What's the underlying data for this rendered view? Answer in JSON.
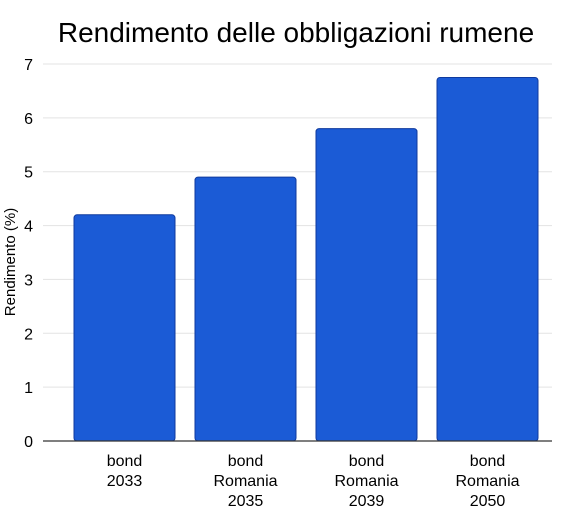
{
  "chart_data": {
    "type": "bar",
    "title": "Rendimento delle obbligazioni rumene",
    "xlabel": "",
    "ylabel": "Rendimento (%)",
    "ylim": [
      0,
      7
    ],
    "yticks": [
      "0",
      "1",
      "2",
      "3",
      "4",
      "5",
      "6",
      "7"
    ],
    "categories": [
      [
        "bond",
        "2033"
      ],
      [
        "bond",
        "Romania",
        "2035"
      ],
      [
        "bond",
        "Romania",
        "2039"
      ],
      [
        "bond",
        "Romania",
        "2050"
      ]
    ],
    "values": [
      4.2,
      4.9,
      5.8,
      6.75
    ],
    "grid": true,
    "legend": "none",
    "bar_color": "#1b5bd6",
    "bar_edge_color": "#0f3a9e"
  }
}
